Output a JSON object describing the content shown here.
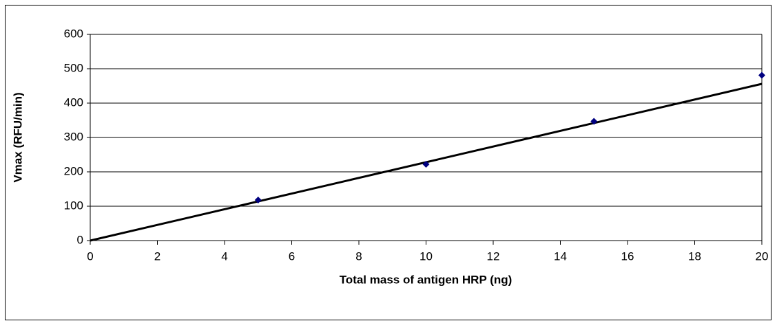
{
  "chart_data": {
    "type": "scatter",
    "xlabel": "Total mass of antigen HRP  (ng)",
    "ylabel": "Vmax (RFU/min)",
    "series": [
      {
        "color": "#000080",
        "x": [
          5,
          10,
          15,
          20
        ],
        "values": [
          118,
          222,
          347,
          481
        ]
      }
    ],
    "trendline": {
      "color": "#000000",
      "x": [
        0,
        20
      ],
      "values": [
        0,
        456
      ]
    },
    "xlim": [
      0,
      20
    ],
    "xticks": [
      0,
      2,
      4,
      6,
      8,
      10,
      12,
      14,
      16,
      18,
      20
    ],
    "ylim": [
      0,
      600
    ],
    "yticks": [
      0,
      100,
      200,
      300,
      400,
      500,
      600
    ],
    "grid": true
  }
}
